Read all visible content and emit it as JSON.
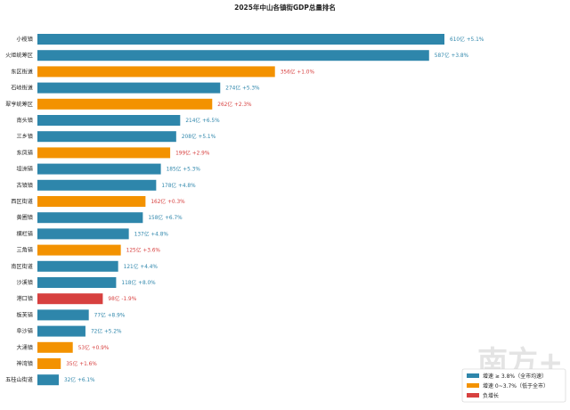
{
  "chart_data": {
    "type": "bar",
    "orientation": "horizontal",
    "title": "2025年中山各镇街GDP总量排名",
    "categories": [
      "小榄镇",
      "火炬统筹区",
      "东区街道",
      "石岐街道",
      "翠亨统筹区",
      "南头镇",
      "三乡镇",
      "东凤镇",
      "坦洲镇",
      "古镇镇",
      "西区街道",
      "黄圃镇",
      "横栏镇",
      "三角镇",
      "南区街道",
      "沙溪镇",
      "港口镇",
      "板芙镇",
      "阜沙镇",
      "大涌镇",
      "神湾镇",
      "五桂山街道"
    ],
    "values": [
      610,
      587,
      356,
      274,
      262,
      214,
      208,
      199,
      185,
      178,
      162,
      158,
      137,
      125,
      121,
      118,
      98,
      77,
      72,
      53,
      35,
      32
    ],
    "growth_labels": [
      "+5.1%",
      "+3.8%",
      "+1.0%",
      "+5.3%",
      "+2.3%",
      "+6.5%",
      "+5.1%",
      "+2.9%",
      "+5.3%",
      "+4.8%",
      "+0.3%",
      "+6.7%",
      "+4.8%",
      "+3.6%",
      "+4.4%",
      "+8.0%",
      "-1.9%",
      "+8.9%",
      "+5.2%",
      "+0.9%",
      "+1.6%",
      "+6.1%"
    ],
    "value_labels": [
      "610亿 +5.1%",
      "587亿 +3.8%",
      "356亿 +1.0%",
      "274亿 +5.3%",
      "262亿 +2.3%",
      "214亿 +6.5%",
      "208亿 +5.1%",
      "199亿 +2.9%",
      "185亿 +5.3%",
      "178亿 +4.8%",
      "162亿 +0.3%",
      "158亿 +6.7%",
      "137亿 +4.8%",
      "125亿 +3.6%",
      "121亿 +4.4%",
      "118亿 +8.0%",
      "98亿 -1.9%",
      "77亿 +8.9%",
      "72亿 +5.2%",
      "53亿 +0.9%",
      "35亿 +1.6%",
      "32亿 +6.1%"
    ],
    "growth_group": [
      "high",
      "high",
      "mid",
      "high",
      "mid",
      "high",
      "high",
      "mid",
      "high",
      "high",
      "mid",
      "high",
      "high",
      "mid",
      "high",
      "high",
      "neg",
      "high",
      "high",
      "mid",
      "mid",
      "high"
    ],
    "xlim": [
      0,
      610
    ],
    "grid": false,
    "legend_position": "bottom-right",
    "legend": [
      {
        "key": "high",
        "label": "增速 ≥ 3.8%（全市均速）",
        "color": "#2e86ab"
      },
      {
        "key": "mid",
        "label": "增速 0~3.7%（低于全市）",
        "color": "#f39200"
      },
      {
        "key": "neg",
        "label": "负增长",
        "color": "#d7403f"
      }
    ],
    "colors": {
      "high": "#2e86ab",
      "mid": "#f39200",
      "neg": "#d7403f"
    },
    "label_colors": {
      "high": "#2e86ab",
      "mid": "#d7403f",
      "neg": "#d7403f"
    }
  },
  "watermark_text": "南方+"
}
